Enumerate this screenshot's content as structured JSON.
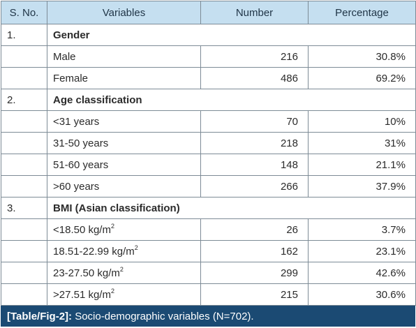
{
  "headers": {
    "sno": "S. No.",
    "variables": "Variables",
    "number": "Number",
    "percentage": "Percentage"
  },
  "sections": [
    {
      "sno": "1.",
      "title": "Gender",
      "rows": [
        {
          "label": "Male",
          "number": "216",
          "percentage": "30.8%"
        },
        {
          "label": "Female",
          "number": "486",
          "percentage": "69.2%"
        }
      ]
    },
    {
      "sno": "2.",
      "title": "Age classification",
      "rows": [
        {
          "label": "<31 years",
          "number": "70",
          "percentage": "10%"
        },
        {
          "label": "31-50 years",
          "number": "218",
          "percentage": "31%"
        },
        {
          "label": "51-60 years",
          "number": "148",
          "percentage": "21.1%"
        },
        {
          "label": ">60 years",
          "number": "266",
          "percentage": "37.9%"
        }
      ]
    },
    {
      "sno": "3.",
      "title": "BMI (Asian classification)",
      "rows": [
        {
          "label": "<18.50 kg/m",
          "sup": "2",
          "number": "26",
          "percentage": "3.7%"
        },
        {
          "label": "18.51-22.99 kg/m",
          "sup": "2",
          "number": "162",
          "percentage": "23.1%"
        },
        {
          "label": "23-27.50 kg/m",
          "sup": "2",
          "number": "299",
          "percentage": "42.6%"
        },
        {
          "label": ">27.51 kg/m",
          "sup": "2",
          "number": "215",
          "percentage": "30.6%"
        }
      ]
    }
  ],
  "caption": {
    "ref": "[Table/Fig-2]:",
    "text": " Socio-demographic variables (N=702)."
  },
  "colors": {
    "header_bg": "#c5dff0",
    "caption_bg": "#1b4a73",
    "border": "#7d8b96"
  }
}
